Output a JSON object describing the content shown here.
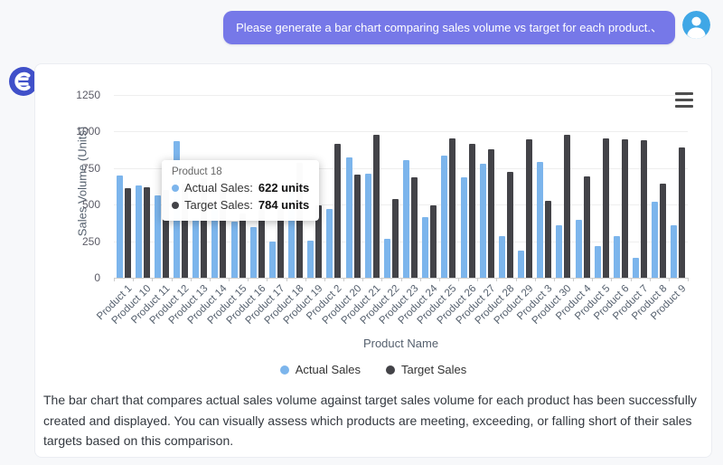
{
  "chat": {
    "user_message": "Please generate a bar chart comparing sales volume vs target for each product.、"
  },
  "assistant": {
    "summary_text": "The bar chart that compares actual sales volume against target sales volume for each product has been successfully created and displayed. You can visually assess which products are meeting, exceeding, or falling short of their sales targets based on this comparison."
  },
  "chart_data": {
    "type": "bar",
    "title": "",
    "xlabel": "Product Name",
    "ylabel": "Sales Volume (Units)",
    "ylim": [
      0,
      1250
    ],
    "yticks": [
      0,
      250,
      500,
      750,
      1000,
      1250
    ],
    "grid": true,
    "legend_position": "bottom",
    "categories": [
      "Product 1",
      "Product 10",
      "Product 11",
      "Product 12",
      "Product 13",
      "Product 14",
      "Product 15",
      "Product 16",
      "Product 17",
      "Product 18",
      "Product 19",
      "Product 2",
      "Product 20",
      "Product 21",
      "Product 22",
      "Product 23",
      "Product 24",
      "Product 25",
      "Product 26",
      "Product 27",
      "Product 28",
      "Product 29",
      "Product 3",
      "Product 30",
      "Product 4",
      "Product 5",
      "Product 6",
      "Product 7",
      "Product 8",
      "Product 9"
    ],
    "series": [
      {
        "name": "Actual Sales",
        "color": "#7cb5ec",
        "values": [
          700,
          630,
          560,
          930,
          400,
          520,
          382,
          345,
          246,
          622,
          255,
          470,
          820,
          710,
          267,
          805,
          413,
          833,
          683,
          775,
          283,
          185,
          790,
          356,
          398,
          214,
          283,
          136,
          521,
          356
        ]
      },
      {
        "name": "Target Sales",
        "color": "#434348",
        "values": [
          610,
          620,
          600,
          640,
          680,
          590,
          440,
          460,
          478,
          784,
          496,
          915,
          706,
          975,
          540,
          683,
          496,
          950,
          915,
          875,
          725,
          945,
          527,
          975,
          694,
          950,
          945,
          940,
          640,
          890
        ]
      }
    ]
  },
  "tooltip": {
    "title": "Product 18",
    "rows": [
      {
        "series": "Actual Sales",
        "value": "622 units"
      },
      {
        "series": "Target Sales",
        "value": "784 units"
      }
    ]
  },
  "icons": {
    "logo": "assistant-logo-icon",
    "avatar": "user-avatar-icon",
    "menu": "hamburger-menu-icon"
  },
  "colors": {
    "page_bg": "#f7f8fa",
    "bubble": "#7678e8",
    "avatar": "#3fa7e6",
    "logo": "#4050c9",
    "actual": "#7cb5ec",
    "target": "#434348"
  }
}
